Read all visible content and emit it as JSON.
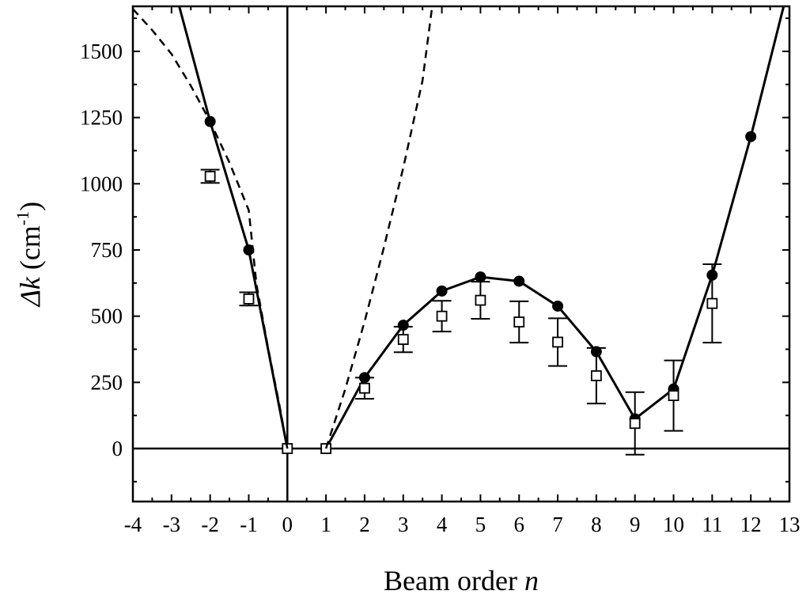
{
  "chart_data": {
    "type": "scatter",
    "xlabel": {
      "text": "Beam order ",
      "italic": "n"
    },
    "ylabel": {
      "italic": "Δk",
      "text": " (cm",
      "sup": "-1",
      "close": ")"
    },
    "xlim": [
      -4,
      13
    ],
    "ylim": [
      -200,
      1670
    ],
    "xticks": [
      -4,
      -3,
      -2,
      -1,
      0,
      1,
      2,
      3,
      4,
      5,
      6,
      7,
      8,
      9,
      10,
      11,
      12,
      13
    ],
    "yticks": [
      0,
      250,
      500,
      750,
      1000,
      1250,
      1500
    ],
    "grid": false,
    "reference_lines": {
      "x": 0,
      "y": 0
    },
    "series": [
      {
        "style": "solid-line",
        "color": "#000000",
        "x": [
          -2.8,
          -2,
          -1,
          0
        ],
        "y": [
          1670,
          1235,
          750,
          0
        ]
      },
      {
        "style": "solid-line",
        "color": "#000000",
        "x": [
          1,
          2,
          3,
          4,
          5,
          6,
          7,
          8,
          9,
          10,
          11,
          12,
          12.85
        ],
        "y": [
          0,
          268,
          466,
          595,
          648,
          632,
          538,
          366,
          112,
          225,
          655,
          1178,
          1670
        ]
      },
      {
        "style": "filled-circle",
        "color": "#000000",
        "x": [
          -2,
          -1,
          1,
          2,
          3,
          4,
          5,
          6,
          7,
          8,
          9,
          10,
          11,
          12
        ],
        "y": [
          1235,
          750,
          0,
          268,
          466,
          595,
          648,
          632,
          538,
          366,
          112,
          225,
          655,
          1178
        ]
      },
      {
        "style": "open-square-errorbar",
        "color": "#000000",
        "x": [
          -2,
          -1,
          0,
          1,
          2,
          3,
          4,
          5,
          6,
          7,
          8,
          9,
          10,
          11
        ],
        "y": [
          1028,
          565,
          0,
          0,
          228,
          412,
          500,
          560,
          478,
          402,
          275,
          95,
          200,
          548
        ],
        "err": [
          25,
          25,
          0,
          0,
          40,
          48,
          58,
          70,
          78,
          90,
          105,
          118,
          133,
          148
        ]
      },
      {
        "style": "dashed-line",
        "color": "#000000",
        "x": [
          -4,
          -3.5,
          -3,
          -2.5,
          -2,
          -1.5,
          -1,
          -0.8,
          -0.5,
          -0.2,
          0
        ],
        "y": [
          1660,
          1580,
          1490,
          1370,
          1235,
          1080,
          900,
          620,
          380,
          160,
          0
        ]
      },
      {
        "style": "dashed-line",
        "color": "#000000",
        "x": [
          1,
          1.5,
          2,
          2.5,
          3,
          3.5,
          3.75
        ],
        "y": [
          0,
          225,
          480,
          760,
          1060,
          1390,
          1670
        ]
      }
    ]
  }
}
